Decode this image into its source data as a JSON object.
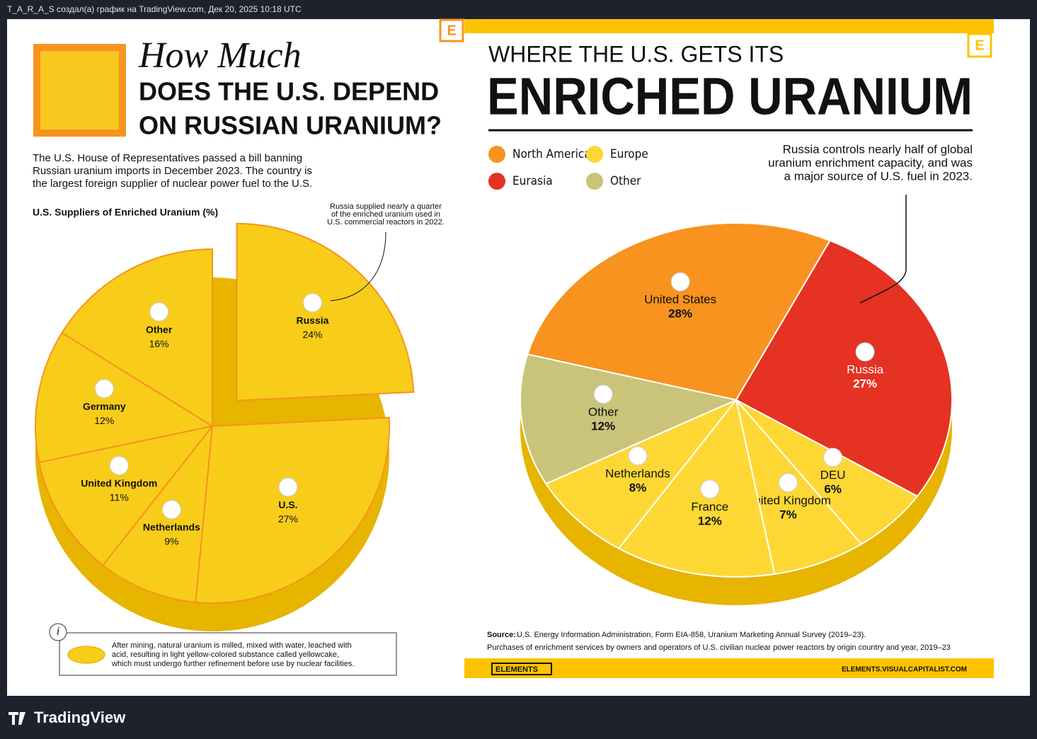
{
  "header": {
    "caption": "T_A_R_A_S создал(а) график на TradingView.com, Дек 20, 2025 10:18 UTC"
  },
  "left": {
    "badge": "E",
    "title_script": "How Much",
    "title_line1": "DOES THE U.S. DEPEND",
    "title_line2": "ON RUSSIAN URANIUM?",
    "intro": [
      "The U.S. House of Representatives passed a bill banning",
      "Russian uranium imports in December 2023. The country is",
      "the largest foreign supplier of nuclear power fuel to the U.S."
    ],
    "info_icon": "i",
    "info": [
      "After mining, natural uranium is milled, mixed with water, leached with",
      "acid, resulting in light yellow-colored substance called yellowcake,",
      "which must undergo further refinement before use by nuclear facilities."
    ]
  },
  "right": {
    "badge": "E",
    "kicker": "WHERE THE U.S. GETS ITS",
    "headline": "ENRICHED URANIUM",
    "legend": [
      {
        "name": "North America",
        "color": "#f7931e"
      },
      {
        "name": "Europe",
        "color": "#fdd835"
      },
      {
        "name": "Eurasia",
        "color": "#e53222"
      },
      {
        "name": "Other",
        "color": "#c9c47a"
      }
    ],
    "source_label": "Source:",
    "source": "U.S. Energy Information Administration, Form EIA-858, Uranium Marketing Annual Survey (2019–23).",
    "note": "Purchases of enrichment services by owners and operators of U.S. civilian nuclear power reactors by origin country and year, 2019–23",
    "brand": "ELEMENTS",
    "url": "ELEMENTS.VISUALCAPITALIST.COM"
  },
  "footer": {
    "logo": "TradingView"
  },
  "chart_data": [
    {
      "type": "pie",
      "title": "U.S. Suppliers of Enriched Uranium (%)",
      "annotation": [
        "Russia supplied nearly a quarter",
        "of the enriched uranium used in",
        "U.S. commercial reactors in 2022."
      ],
      "categories": [
        "Russia",
        "U.S.",
        "Netherlands",
        "United Kingdom",
        "Germany",
        "Other"
      ],
      "values": [
        24,
        27,
        9,
        11,
        12,
        16
      ],
      "value_labels": [
        "24%",
        "27%",
        "9%",
        "11%",
        "12%",
        "16%"
      ],
      "color": "#f8cd1a"
    },
    {
      "type": "pie",
      "annotation": [
        "Russia controls nearly half of global",
        "uranium enrichment capacity, and was",
        "a major source of U.S. fuel in 2023."
      ],
      "categories": [
        "United States",
        "Russia",
        "DEU",
        "United Kingdom",
        "France",
        "Netherlands",
        "Other"
      ],
      "values": [
        28,
        27,
        6,
        7,
        12,
        8,
        12
      ],
      "value_labels": [
        "28%",
        "27%",
        "6%",
        "7%",
        "12%",
        "8%",
        "12%"
      ],
      "colors": [
        "#f7931e",
        "#e53222",
        "#fdd835",
        "#fdd835",
        "#fdd835",
        "#fdd835",
        "#c9c47a"
      ]
    }
  ]
}
